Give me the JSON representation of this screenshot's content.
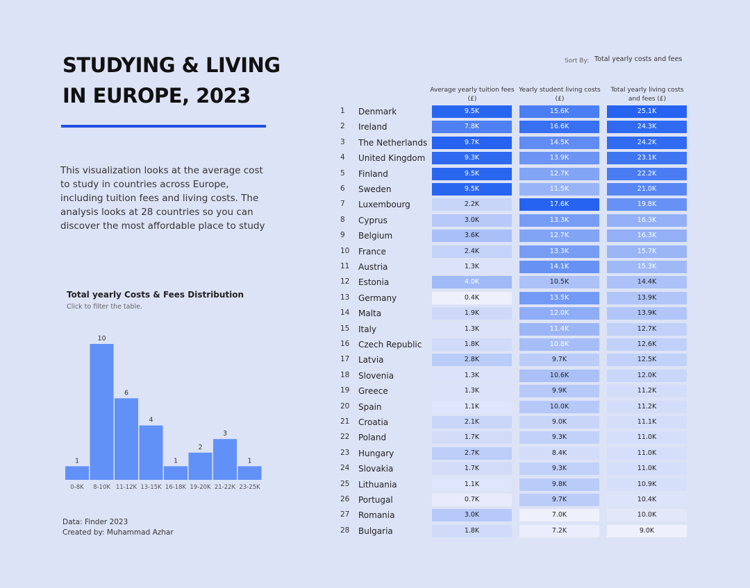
{
  "title": {
    "line1": "STUDYING & LIVING",
    "line2": "IN EUROPE, 2023"
  },
  "intro": "This visualization looks at the average cost to study in countries across Europe, including tuition fees and living costs. The analysis looks at 28 countries so you can discover the most affordable place to study",
  "histogram": {
    "title": "Total yearly Costs & Fees Distribution",
    "subtitle": "Click to filter the table."
  },
  "credits": {
    "source": "Data: Finder 2023",
    "author": "Created by: Muhammad Azhar"
  },
  "sort": {
    "label": "Sort By:",
    "value": "Total yearly costs and fees"
  },
  "columns": {
    "tuition": {
      "line1": "Average yearly tuition fees",
      "line2": "(£)"
    },
    "living": {
      "line1": "Yearly student living costs",
      "line2": "(£)"
    },
    "total": {
      "line1": "Total yearly living costs",
      "line2": "and fees (£)"
    }
  },
  "colors": {
    "bar": "#6190f7",
    "strong": "#2563f0",
    "light": "#eef0fb"
  },
  "rows": [
    {
      "rank": "1",
      "country": "Denmark",
      "tuition": "9.5K",
      "living": "15.6K",
      "total": "25.1K"
    },
    {
      "rank": "2",
      "country": "Ireland",
      "tuition": "7.8K",
      "living": "16.6K",
      "total": "24.3K"
    },
    {
      "rank": "3",
      "country": "The Netherlands",
      "tuition": "9.7K",
      "living": "14.5K",
      "total": "24.2K"
    },
    {
      "rank": "4",
      "country": "United Kingdom",
      "tuition": "9.3K",
      "living": "13.9K",
      "total": "23.1K"
    },
    {
      "rank": "5",
      "country": "Finland",
      "tuition": "9.5K",
      "living": "12.7K",
      "total": "22.2K"
    },
    {
      "rank": "6",
      "country": "Sweden",
      "tuition": "9.5K",
      "living": "11.5K",
      "total": "21.0K"
    },
    {
      "rank": "7",
      "country": "Luxembourg",
      "tuition": "2.2K",
      "living": "17.6K",
      "total": "19.8K"
    },
    {
      "rank": "8",
      "country": "Cyprus",
      "tuition": "3.0K",
      "living": "13.3K",
      "total": "16.3K"
    },
    {
      "rank": "9",
      "country": "Belgium",
      "tuition": "3.6K",
      "living": "12.7K",
      "total": "16.3K"
    },
    {
      "rank": "10",
      "country": "France",
      "tuition": "2.4K",
      "living": "13.3K",
      "total": "15.7K"
    },
    {
      "rank": "11",
      "country": "Austria",
      "tuition": "1.3K",
      "living": "14.1K",
      "total": "15.3K"
    },
    {
      "rank": "12",
      "country": "Estonia",
      "tuition": "4.0K",
      "living": "10.5K",
      "total": "14.4K"
    },
    {
      "rank": "13",
      "country": "Germany",
      "tuition": "0.4K",
      "living": "13.5K",
      "total": "13.9K"
    },
    {
      "rank": "14",
      "country": "Malta",
      "tuition": "1.9K",
      "living": "12.0K",
      "total": "13.9K"
    },
    {
      "rank": "15",
      "country": "Italy",
      "tuition": "1.3K",
      "living": "11.4K",
      "total": "12.7K"
    },
    {
      "rank": "16",
      "country": "Czech Republic",
      "tuition": "1.8K",
      "living": "10.8K",
      "total": "12.6K"
    },
    {
      "rank": "17",
      "country": "Latvia",
      "tuition": "2.8K",
      "living": "9.7K",
      "total": "12.5K"
    },
    {
      "rank": "18",
      "country": "Slovenia",
      "tuition": "1.3K",
      "living": "10.6K",
      "total": "12.0K"
    },
    {
      "rank": "19",
      "country": "Greece",
      "tuition": "1.3K",
      "living": "9.9K",
      "total": "11.2K"
    },
    {
      "rank": "20",
      "country": "Spain",
      "tuition": "1.1K",
      "living": "10.0K",
      "total": "11.2K"
    },
    {
      "rank": "21",
      "country": "Croatia",
      "tuition": "2.1K",
      "living": "9.0K",
      "total": "11.1K"
    },
    {
      "rank": "22",
      "country": "Poland",
      "tuition": "1.7K",
      "living": "9.3K",
      "total": "11.0K"
    },
    {
      "rank": "23",
      "country": "Hungary",
      "tuition": "2.7K",
      "living": "8.4K",
      "total": "11.0K"
    },
    {
      "rank": "24",
      "country": "Slovakia",
      "tuition": "1.7K",
      "living": "9.3K",
      "total": "11.0K"
    },
    {
      "rank": "25",
      "country": "Lithuania",
      "tuition": "1.1K",
      "living": "9.8K",
      "total": "10.9K"
    },
    {
      "rank": "26",
      "country": "Portugal",
      "tuition": "0.7K",
      "living": "9.7K",
      "total": "10.4K"
    },
    {
      "rank": "27",
      "country": "Romania",
      "tuition": "3.0K",
      "living": "7.0K",
      "total": "10.0K"
    },
    {
      "rank": "28",
      "country": "Bulgaria",
      "tuition": "1.8K",
      "living": "7.2K",
      "total": "9.0K"
    }
  ],
  "chart_data": {
    "type": "bar",
    "title": "Total yearly Costs & Fees Distribution",
    "categories": [
      "0-8K",
      "8-10K",
      "11-12K",
      "13-15K",
      "16-18K",
      "19-20K",
      "21-22K",
      "23-25K"
    ],
    "values": [
      1,
      10,
      6,
      4,
      1,
      2,
      3,
      1
    ],
    "xlabel": "",
    "ylabel": "",
    "grid": false
  }
}
